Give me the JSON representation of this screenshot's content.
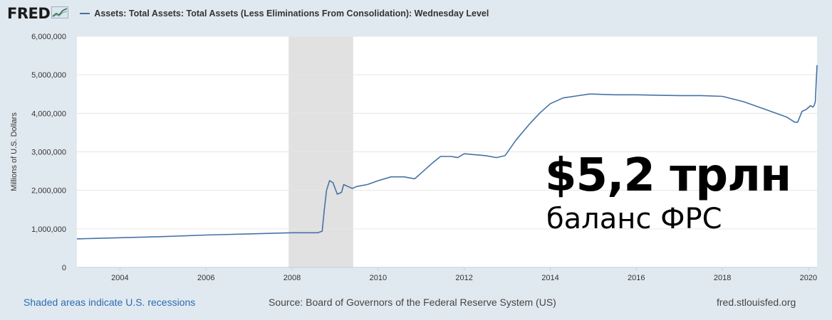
{
  "header": {
    "logo_text": "FRED",
    "logo_icon": "chart-trend-icon"
  },
  "chart_data": {
    "type": "line",
    "title": "Assets: Total Assets: Total Assets (Less Eliminations From Consolidation): Wednesday Level",
    "ylabel": "Millions of U.S. Dollars",
    "xlabel": "",
    "xlim": [
      2003.0,
      2020.2
    ],
    "ylim": [
      0,
      6000000
    ],
    "x_ticks": [
      2004,
      2006,
      2008,
      2010,
      2012,
      2014,
      2016,
      2018,
      2020
    ],
    "y_ticks": [
      0,
      1000000,
      2000000,
      3000000,
      4000000,
      5000000,
      6000000
    ],
    "y_tick_labels": [
      "0",
      "1,000,000",
      "2,000,000",
      "3,000,000",
      "4,000,000",
      "5,000,000",
      "6,000,000"
    ],
    "recession": {
      "start": 2007.92,
      "end": 2009.42
    },
    "grid": true,
    "series": [
      {
        "name": "Assets: Total Assets: Total Assets (Less Eliminations From Consolidation): Wednesday Level",
        "color": "#4572a7",
        "x": [
          2003.0,
          2004.0,
          2005.0,
          2006.0,
          2007.0,
          2008.0,
          2008.6,
          2008.7,
          2008.75,
          2008.8,
          2008.87,
          2008.95,
          2009.05,
          2009.15,
          2009.2,
          2009.3,
          2009.4,
          2009.5,
          2009.75,
          2010.0,
          2010.3,
          2010.6,
          2010.85,
          2011.0,
          2011.25,
          2011.45,
          2011.7,
          2011.85,
          2012.0,
          2012.5,
          2012.75,
          2012.95,
          2013.2,
          2013.5,
          2013.75,
          2014.0,
          2014.3,
          2014.6,
          2014.9,
          2015.0,
          2015.5,
          2016.0,
          2016.5,
          2017.0,
          2017.5,
          2018.0,
          2018.5,
          2019.0,
          2019.5,
          2019.68,
          2019.75,
          2019.85,
          2019.95,
          2020.05,
          2020.1,
          2020.13,
          2020.16,
          2020.18,
          2020.2
        ],
        "values": [
          740000,
          770000,
          800000,
          840000,
          870000,
          900000,
          900000,
          940000,
          1500000,
          2000000,
          2250000,
          2200000,
          1900000,
          1950000,
          2150000,
          2100000,
          2050000,
          2100000,
          2150000,
          2250000,
          2350000,
          2350000,
          2300000,
          2450000,
          2700000,
          2880000,
          2880000,
          2850000,
          2950000,
          2900000,
          2850000,
          2900000,
          3300000,
          3700000,
          4000000,
          4250000,
          4400000,
          4450000,
          4500000,
          4500000,
          4480000,
          4480000,
          4470000,
          4460000,
          4460000,
          4440000,
          4300000,
          4100000,
          3900000,
          3770000,
          3770000,
          4050000,
          4100000,
          4200000,
          4160000,
          4200000,
          4300000,
          4800000,
          5250000
        ]
      }
    ]
  },
  "overlay": {
    "amount": "$5,2 трлн",
    "caption": "баланс ФРС"
  },
  "footer": {
    "recession_note": "Shaded areas indicate U.S. recessions",
    "source": "Source: Board of Governors of the Federal Reserve System (US)",
    "site": "fred.stlouisfed.org"
  }
}
